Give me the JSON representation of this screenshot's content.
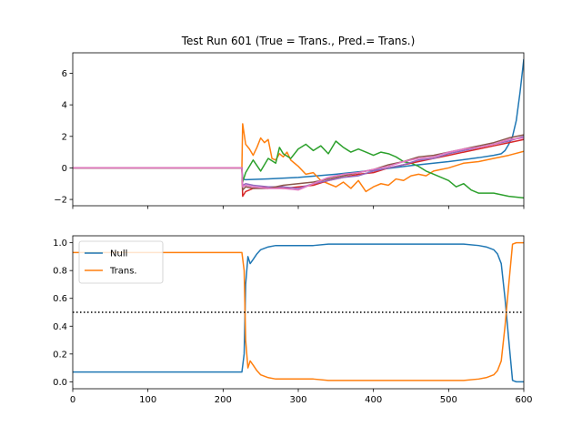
{
  "chart_data": [
    {
      "type": "line",
      "title": "Test Run 601 (True = Trans., Pred.= Trans.)",
      "xlim": [
        0,
        600
      ],
      "ylim": [
        -2.4,
        7.3
      ],
      "yticks": [
        -2,
        0,
        2,
        4,
        6
      ],
      "xticks": [
        0,
        100,
        200,
        300,
        400,
        500,
        600
      ],
      "x_tick_labels_shown": false,
      "series": [
        {
          "color": "#1f77b4",
          "x": [
            0,
            225,
            226,
            230,
            260,
            300,
            350,
            400,
            450,
            500,
            540,
            560,
            570,
            575,
            580,
            585,
            590,
            595,
            600
          ],
          "y": [
            0,
            0,
            -0.7,
            -0.75,
            -0.7,
            -0.6,
            -0.4,
            -0.15,
            0.15,
            0.4,
            0.65,
            0.8,
            0.9,
            1.1,
            1.5,
            2.0,
            3.0,
            4.8,
            6.9
          ]
        },
        {
          "color": "#ff7f0e",
          "x": [
            0,
            225,
            226,
            230,
            235,
            240,
            245,
            250,
            255,
            260,
            265,
            270,
            275,
            280,
            285,
            290,
            295,
            300,
            310,
            320,
            330,
            340,
            350,
            360,
            370,
            380,
            390,
            400,
            410,
            420,
            430,
            440,
            450,
            460,
            470,
            480,
            490,
            500,
            520,
            540,
            560,
            580,
            600
          ],
          "y": [
            0,
            0,
            2.8,
            1.5,
            1.2,
            0.8,
            1.3,
            1.9,
            1.6,
            1.8,
            0.6,
            0.5,
            0.9,
            0.7,
            1.0,
            0.5,
            0.3,
            0.1,
            -0.4,
            -0.3,
            -0.8,
            -1.0,
            -1.2,
            -0.9,
            -1.3,
            -0.8,
            -1.5,
            -1.2,
            -1.0,
            -1.1,
            -0.7,
            -0.8,
            -0.5,
            -0.4,
            -0.5,
            -0.2,
            -0.1,
            0.0,
            0.3,
            0.4,
            0.6,
            0.8,
            1.05
          ]
        },
        {
          "color": "#2ca02c",
          "x": [
            0,
            225,
            226,
            230,
            240,
            250,
            260,
            270,
            275,
            280,
            290,
            300,
            310,
            320,
            330,
            340,
            350,
            360,
            370,
            380,
            390,
            400,
            410,
            420,
            430,
            440,
            450,
            460,
            470,
            480,
            490,
            500,
            510,
            520,
            530,
            540,
            560,
            580,
            600
          ],
          "y": [
            0,
            0,
            -0.9,
            -0.3,
            0.5,
            -0.2,
            0.6,
            0.3,
            1.3,
            0.9,
            0.6,
            1.2,
            1.5,
            1.1,
            1.4,
            0.9,
            1.7,
            1.3,
            1.0,
            1.2,
            1.0,
            0.8,
            1.0,
            0.9,
            0.7,
            0.4,
            0.3,
            0.1,
            -0.2,
            -0.4,
            -0.6,
            -0.8,
            -1.2,
            -1.0,
            -1.4,
            -1.6,
            -1.6,
            -1.8,
            -1.9
          ]
        },
        {
          "color": "#d62728",
          "x": [
            0,
            225,
            226,
            230,
            240,
            260,
            280,
            300,
            320,
            340,
            360,
            380,
            400,
            420,
            440,
            460,
            480,
            500,
            520,
            540,
            560,
            580,
            600
          ],
          "y": [
            0,
            0,
            -1.8,
            -1.5,
            -1.3,
            -1.2,
            -1.3,
            -1.2,
            -1.1,
            -0.8,
            -0.6,
            -0.4,
            -0.3,
            0.0,
            0.2,
            0.4,
            0.6,
            0.8,
            1.0,
            1.2,
            1.4,
            1.6,
            1.8
          ]
        },
        {
          "color": "#9467bd",
          "x": [
            0,
            225,
            226,
            230,
            240,
            260,
            280,
            300,
            320,
            340,
            360,
            380,
            400,
            420,
            440,
            460,
            480,
            500,
            520,
            540,
            560,
            580,
            600
          ],
          "y": [
            0,
            0,
            -1.1,
            -1.0,
            -1.1,
            -1.2,
            -1.2,
            -1.3,
            -1.0,
            -0.8,
            -0.6,
            -0.5,
            -0.2,
            0.0,
            0.2,
            0.5,
            0.6,
            0.9,
            1.1,
            1.3,
            1.5,
            1.7,
            2.0
          ]
        },
        {
          "color": "#8c564b",
          "x": [
            0,
            225,
            226,
            230,
            240,
            260,
            280,
            300,
            320,
            340,
            360,
            380,
            400,
            420,
            440,
            460,
            480,
            500,
            520,
            540,
            560,
            580,
            600
          ],
          "y": [
            0,
            0,
            -1.4,
            -1.2,
            -1.3,
            -1.3,
            -1.1,
            -1.0,
            -0.9,
            -0.7,
            -0.5,
            -0.3,
            -0.1,
            0.2,
            0.4,
            0.7,
            0.8,
            1.0,
            1.2,
            1.4,
            1.6,
            1.9,
            2.1
          ]
        },
        {
          "color": "#e377c2",
          "x": [
            0,
            225,
            226,
            230,
            240,
            260,
            280,
            300,
            320,
            340,
            360,
            380,
            400,
            420,
            440,
            460,
            480,
            500,
            520,
            540,
            560,
            580,
            600
          ],
          "y": [
            0,
            0,
            -1.2,
            -1.1,
            -1.2,
            -1.3,
            -1.3,
            -1.4,
            -1.0,
            -0.6,
            -0.4,
            -0.3,
            -0.1,
            0.1,
            0.4,
            0.6,
            0.7,
            1.0,
            1.2,
            1.3,
            1.5,
            1.8,
            1.9
          ]
        }
      ]
    },
    {
      "type": "line",
      "xlim": [
        0,
        600
      ],
      "ylim": [
        -0.05,
        1.05
      ],
      "yticks": [
        0.0,
        0.2,
        0.4,
        0.6,
        0.8,
        1.0
      ],
      "xticks": [
        0,
        100,
        200,
        300,
        400,
        500,
        600
      ],
      "hline": {
        "y": 0.5,
        "style": "dotted",
        "color": "#000000"
      },
      "legend": {
        "placement": "upper-left",
        "entries": [
          "Null",
          "Trans."
        ]
      },
      "series": [
        {
          "name": "Null",
          "color": "#1f77b4",
          "x": [
            0,
            225,
            228,
            230,
            233,
            236,
            240,
            245,
            250,
            260,
            270,
            280,
            300,
            320,
            340,
            360,
            380,
            400,
            450,
            500,
            520,
            540,
            550,
            560,
            565,
            570,
            575,
            580,
            585,
            590,
            600
          ],
          "y": [
            0.07,
            0.07,
            0.2,
            0.7,
            0.9,
            0.85,
            0.88,
            0.92,
            0.95,
            0.97,
            0.98,
            0.98,
            0.98,
            0.98,
            0.99,
            0.99,
            0.99,
            0.99,
            0.99,
            0.99,
            0.99,
            0.98,
            0.97,
            0.95,
            0.92,
            0.85,
            0.6,
            0.3,
            0.01,
            0.0,
            0.0
          ]
        },
        {
          "name": "Trans.",
          "color": "#ff7f0e",
          "x": [
            0,
            225,
            228,
            230,
            233,
            236,
            240,
            245,
            250,
            260,
            270,
            280,
            300,
            320,
            340,
            360,
            380,
            400,
            450,
            500,
            520,
            540,
            550,
            560,
            565,
            570,
            575,
            580,
            585,
            590,
            600
          ],
          "y": [
            0.93,
            0.93,
            0.8,
            0.3,
            0.1,
            0.15,
            0.12,
            0.08,
            0.05,
            0.03,
            0.02,
            0.02,
            0.02,
            0.02,
            0.01,
            0.01,
            0.01,
            0.01,
            0.01,
            0.01,
            0.01,
            0.02,
            0.03,
            0.05,
            0.08,
            0.15,
            0.4,
            0.7,
            0.99,
            1.0,
            1.0
          ]
        }
      ]
    }
  ]
}
